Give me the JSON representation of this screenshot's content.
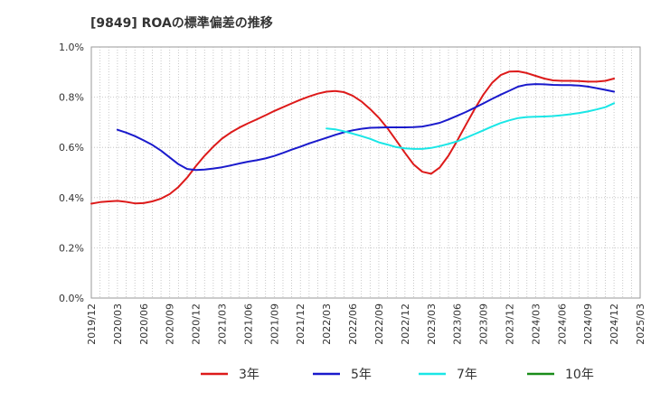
{
  "chart_data": {
    "type": "line",
    "title": "[9849]  ROAの標準偏差の推移",
    "xlabel": "",
    "ylabel": "",
    "ylim": [
      0,
      1.0
    ],
    "y_unit": "%",
    "y_ticks": [
      "0.0%",
      "0.2%",
      "0.4%",
      "0.6%",
      "0.8%",
      "1.0%"
    ],
    "x_ticks": [
      "2019/12",
      "2020/03",
      "2020/06",
      "2020/09",
      "2020/12",
      "2021/03",
      "2021/06",
      "2021/09",
      "2021/12",
      "2022/03",
      "2022/06",
      "2022/09",
      "2022/12",
      "2023/03",
      "2023/06",
      "2023/09",
      "2023/12",
      "2024/03",
      "2024/06",
      "2024/09",
      "2024/12",
      "2025/03"
    ],
    "grid": true,
    "legend_position": "bottom",
    "series": [
      {
        "name": "3年",
        "color": "#dd1a1a",
        "x": [
          "2019/12",
          "2020/01",
          "2020/02",
          "2020/03",
          "2020/04",
          "2020/05",
          "2020/06",
          "2020/07",
          "2020/08",
          "2020/09",
          "2020/10",
          "2020/11",
          "2020/12",
          "2021/01",
          "2021/02",
          "2021/03",
          "2021/04",
          "2021/05",
          "2021/06",
          "2021/07",
          "2021/08",
          "2021/09",
          "2021/10",
          "2021/11",
          "2021/12",
          "2022/01",
          "2022/02",
          "2022/03",
          "2022/04",
          "2022/05",
          "2022/06",
          "2022/07",
          "2022/08",
          "2022/09",
          "2022/10",
          "2022/11",
          "2022/12",
          "2023/01",
          "2023/02",
          "2023/03",
          "2023/04",
          "2023/05",
          "2023/06",
          "2023/07",
          "2023/08",
          "2023/09",
          "2023/10",
          "2023/11",
          "2023/12",
          "2024/01",
          "2024/02",
          "2024/03",
          "2024/04",
          "2024/05",
          "2024/06",
          "2024/07",
          "2024/08",
          "2024/09",
          "2024/10",
          "2024/11",
          "2024/12"
        ],
        "values": [
          0.376,
          0.382,
          0.385,
          0.387,
          0.383,
          0.377,
          0.378,
          0.385,
          0.396,
          0.414,
          0.442,
          0.48,
          0.525,
          0.567,
          0.603,
          0.635,
          0.659,
          0.679,
          0.696,
          0.712,
          0.728,
          0.745,
          0.76,
          0.775,
          0.79,
          0.803,
          0.814,
          0.822,
          0.825,
          0.82,
          0.806,
          0.783,
          0.753,
          0.718,
          0.676,
          0.628,
          0.578,
          0.532,
          0.503,
          0.495,
          0.52,
          0.567,
          0.627,
          0.69,
          0.752,
          0.81,
          0.857,
          0.888,
          0.902,
          0.903,
          0.896,
          0.885,
          0.874,
          0.867,
          0.865,
          0.865,
          0.864,
          0.862,
          0.862,
          0.865,
          0.874
        ]
      },
      {
        "name": "5年",
        "color": "#1a1acc",
        "x": [
          "2020/03",
          "2020/04",
          "2020/05",
          "2020/06",
          "2020/07",
          "2020/08",
          "2020/09",
          "2020/10",
          "2020/11",
          "2020/12",
          "2021/01",
          "2021/02",
          "2021/03",
          "2021/04",
          "2021/05",
          "2021/06",
          "2021/07",
          "2021/08",
          "2021/09",
          "2021/10",
          "2021/11",
          "2021/12",
          "2022/01",
          "2022/02",
          "2022/03",
          "2022/04",
          "2022/05",
          "2022/06",
          "2022/07",
          "2022/08",
          "2022/09",
          "2022/10",
          "2022/11",
          "2022/12",
          "2023/01",
          "2023/02",
          "2023/03",
          "2023/04",
          "2023/05",
          "2023/06",
          "2023/07",
          "2023/08",
          "2023/09",
          "2023/10",
          "2023/11",
          "2023/12",
          "2024/01",
          "2024/02",
          "2024/03",
          "2024/04",
          "2024/05",
          "2024/06",
          "2024/07",
          "2024/08",
          "2024/09",
          "2024/10",
          "2024/11",
          "2024/12"
        ],
        "values": [
          0.67,
          0.659,
          0.645,
          0.628,
          0.61,
          0.587,
          0.56,
          0.533,
          0.514,
          0.51,
          0.512,
          0.516,
          0.521,
          0.528,
          0.536,
          0.543,
          0.549,
          0.556,
          0.566,
          0.578,
          0.591,
          0.603,
          0.616,
          0.627,
          0.638,
          0.65,
          0.66,
          0.668,
          0.674,
          0.678,
          0.679,
          0.68,
          0.68,
          0.68,
          0.681,
          0.683,
          0.69,
          0.698,
          0.711,
          0.726,
          0.741,
          0.758,
          0.775,
          0.793,
          0.81,
          0.826,
          0.842,
          0.85,
          0.852,
          0.851,
          0.849,
          0.848,
          0.848,
          0.846,
          0.842,
          0.836,
          0.829,
          0.822
        ]
      },
      {
        "name": "7年",
        "color": "#1ae6e6",
        "x": [
          "2022/03",
          "2022/04",
          "2022/05",
          "2022/06",
          "2022/07",
          "2022/08",
          "2022/09",
          "2022/10",
          "2022/11",
          "2022/12",
          "2023/01",
          "2023/02",
          "2023/03",
          "2023/04",
          "2023/05",
          "2023/06",
          "2023/07",
          "2023/08",
          "2023/09",
          "2023/10",
          "2023/11",
          "2023/12",
          "2024/01",
          "2024/02",
          "2024/03",
          "2024/04",
          "2024/05",
          "2024/06",
          "2024/07",
          "2024/08",
          "2024/09",
          "2024/10",
          "2024/11",
          "2024/12"
        ],
        "values": [
          0.675,
          0.672,
          0.664,
          0.655,
          0.645,
          0.634,
          0.62,
          0.611,
          0.601,
          0.596,
          0.594,
          0.594,
          0.598,
          0.605,
          0.614,
          0.624,
          0.638,
          0.653,
          0.668,
          0.683,
          0.697,
          0.708,
          0.717,
          0.721,
          0.722,
          0.723,
          0.725,
          0.728,
          0.732,
          0.737,
          0.743,
          0.751,
          0.76,
          0.776
        ]
      },
      {
        "name": "10年",
        "color": "#1a8c1a",
        "x": [],
        "values": []
      }
    ]
  }
}
